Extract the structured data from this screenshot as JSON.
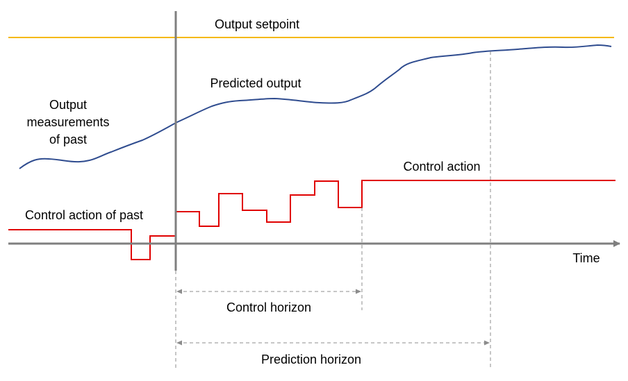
{
  "labels": {
    "output_setpoint": "Output setpoint",
    "predicted_output": "Predicted output",
    "output_measurements_line1": "Output",
    "output_measurements_line2": "measurements",
    "output_measurements_line3": "of past",
    "control_action": "Control action",
    "control_action_past": "Control action of past",
    "time": "Time",
    "control_horizon": "Control horizon",
    "prediction_horizon": "Prediction horizon"
  },
  "colors": {
    "setpoint": "#F5B800",
    "output": "#2F4C8F",
    "control": "#E00000",
    "axis": "#7F7F7F",
    "dashed": "#8C8C8C"
  }
}
